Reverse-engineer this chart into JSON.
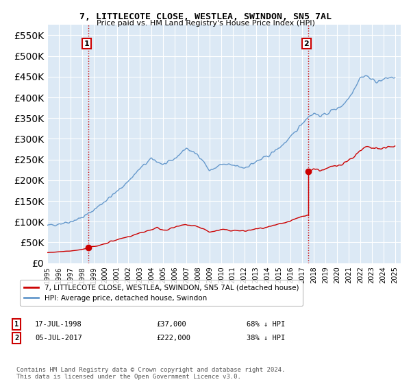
{
  "title": "7, LITTLECOTE CLOSE, WESTLEA, SWINDON, SN5 7AL",
  "subtitle": "Price paid vs. HM Land Registry's House Price Index (HPI)",
  "legend_label_red": "7, LITTLECOTE CLOSE, WESTLEA, SWINDON, SN5 7AL (detached house)",
  "legend_label_blue": "HPI: Average price, detached house, Swindon",
  "annotation1_date": "17-JUL-1998",
  "annotation1_price": "£37,000",
  "annotation1_hpi": "68% ↓ HPI",
  "annotation1_year": 1998.54,
  "annotation1_value": 37000,
  "annotation2_date": "05-JUL-2017",
  "annotation2_price": "£222,000",
  "annotation2_hpi": "38% ↓ HPI",
  "annotation2_year": 2017.51,
  "annotation2_value": 222000,
  "footer": "Contains HM Land Registry data © Crown copyright and database right 2024.\nThis data is licensed under the Open Government Licence v3.0.",
  "ylim": [
    0,
    575000
  ],
  "xlim_start": 1995.0,
  "xlim_end": 2025.5,
  "background_color": "#ffffff",
  "plot_bg_color": "#dce9f5",
  "grid_color": "#ffffff",
  "red_color": "#cc0000",
  "blue_color": "#6699cc",
  "vline_color": "#cc0000",
  "annot_box_color": "#ffffff",
  "annot_box_edge": "#cc0000"
}
